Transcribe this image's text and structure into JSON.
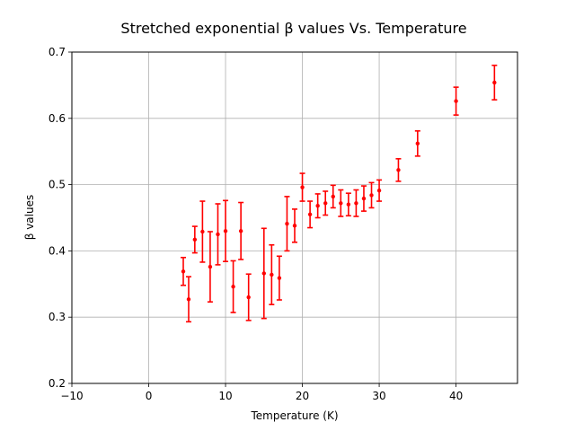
{
  "chart_data": {
    "type": "scatter",
    "title": "Stretched exponential β values Vs. Temperature",
    "xlabel": "Temperature (K)",
    "ylabel": "β values",
    "xlim": [
      -10,
      48
    ],
    "ylim": [
      0.2,
      0.7
    ],
    "xticks": [
      -10,
      0,
      10,
      20,
      30,
      40
    ],
    "xtick_labels": [
      "−10",
      "0",
      "10",
      "20",
      "30",
      "40"
    ],
    "yticks": [
      0.2,
      0.3,
      0.4,
      0.5,
      0.6,
      0.7
    ],
    "ytick_labels": [
      "0.2",
      "0.3",
      "0.4",
      "0.5",
      "0.6",
      "0.7"
    ],
    "grid": true,
    "color": "#ff0000",
    "series": [
      {
        "error_bars": true,
        "points": [
          {
            "x": 4.5,
            "y": 0.369,
            "err": 0.021
          },
          {
            "x": 5.2,
            "y": 0.327,
            "err": 0.034
          },
          {
            "x": 6.0,
            "y": 0.417,
            "err": 0.02
          },
          {
            "x": 7.0,
            "y": 0.429,
            "err": 0.046
          },
          {
            "x": 8.0,
            "y": 0.376,
            "err": 0.053
          },
          {
            "x": 9.0,
            "y": 0.425,
            "err": 0.046
          },
          {
            "x": 10.0,
            "y": 0.43,
            "err": 0.046
          },
          {
            "x": 11.0,
            "y": 0.346,
            "err": 0.039
          },
          {
            "x": 12.0,
            "y": 0.43,
            "err": 0.043
          },
          {
            "x": 13.0,
            "y": 0.33,
            "err": 0.035
          },
          {
            "x": 15.0,
            "y": 0.366,
            "err": 0.068
          },
          {
            "x": 16.0,
            "y": 0.364,
            "err": 0.045
          },
          {
            "x": 17.0,
            "y": 0.359,
            "err": 0.033
          },
          {
            "x": 18.0,
            "y": 0.441,
            "err": 0.041
          },
          {
            "x": 19.0,
            "y": 0.438,
            "err": 0.025
          },
          {
            "x": 20.0,
            "y": 0.496,
            "err": 0.021
          },
          {
            "x": 21.0,
            "y": 0.455,
            "err": 0.02
          },
          {
            "x": 22.0,
            "y": 0.468,
            "err": 0.018
          },
          {
            "x": 23.0,
            "y": 0.472,
            "err": 0.018
          },
          {
            "x": 24.0,
            "y": 0.482,
            "err": 0.017
          },
          {
            "x": 25.0,
            "y": 0.472,
            "err": 0.02
          },
          {
            "x": 26.0,
            "y": 0.47,
            "err": 0.017
          },
          {
            "x": 27.0,
            "y": 0.472,
            "err": 0.02
          },
          {
            "x": 28.0,
            "y": 0.479,
            "err": 0.019
          },
          {
            "x": 29.0,
            "y": 0.484,
            "err": 0.019
          },
          {
            "x": 30.0,
            "y": 0.491,
            "err": 0.016
          },
          {
            "x": 32.5,
            "y": 0.522,
            "err": 0.017
          },
          {
            "x": 35.0,
            "y": 0.562,
            "err": 0.019
          },
          {
            "x": 40.0,
            "y": 0.626,
            "err": 0.021
          },
          {
            "x": 45.0,
            "y": 0.654,
            "err": 0.026
          }
        ]
      }
    ]
  }
}
